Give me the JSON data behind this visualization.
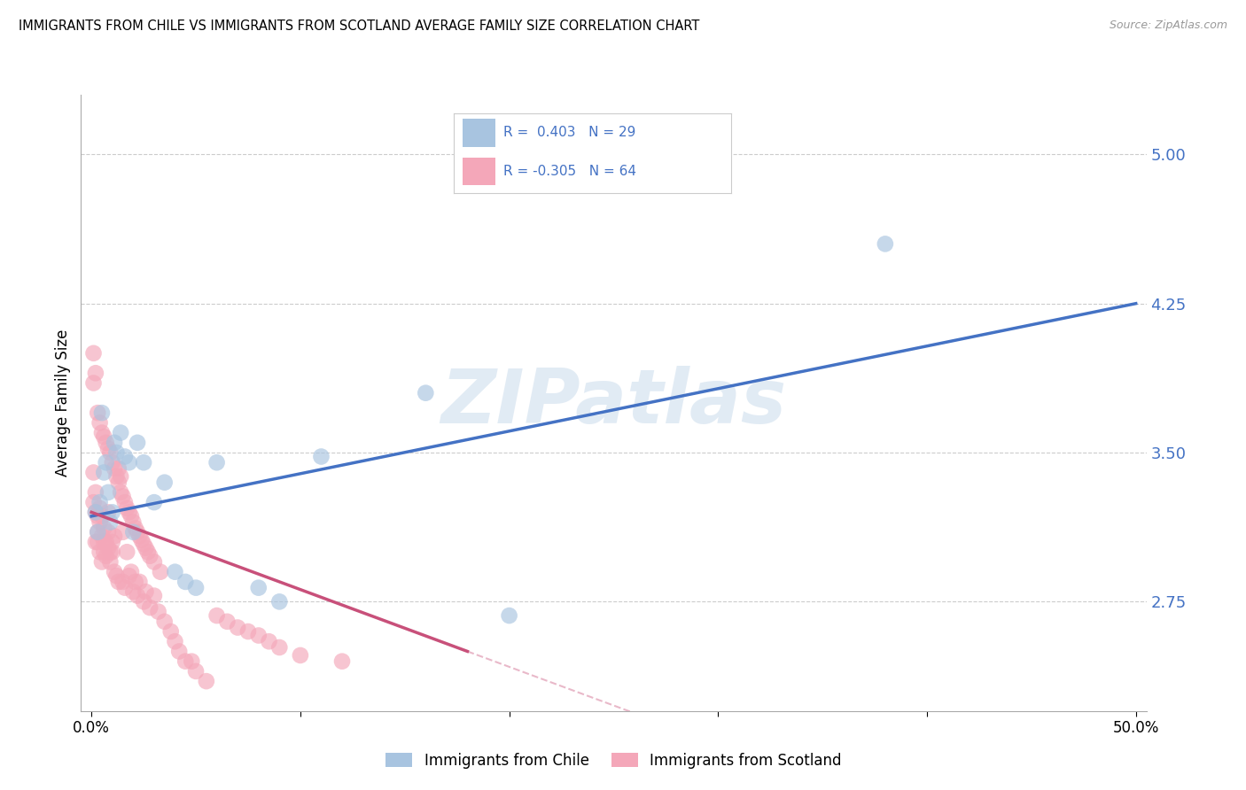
{
  "title": "IMMIGRANTS FROM CHILE VS IMMIGRANTS FROM SCOTLAND AVERAGE FAMILY SIZE CORRELATION CHART",
  "source": "Source: ZipAtlas.com",
  "ylabel": "Average Family Size",
  "xlim": [
    -0.005,
    0.505
  ],
  "ylim": [
    2.2,
    5.3
  ],
  "yticks": [
    2.75,
    3.5,
    4.25,
    5.0
  ],
  "xticks": [
    0.0,
    0.1,
    0.2,
    0.3,
    0.4,
    0.5
  ],
  "xticklabels": [
    "0.0%",
    "",
    "",
    "",
    "",
    "50.0%"
  ],
  "legend_r_chile": "0.403",
  "legend_n_chile": "29",
  "legend_r_scotland": "-0.305",
  "legend_n_scotland": "64",
  "chile_color": "#a8c4e0",
  "scotland_color": "#f4a7b9",
  "chile_line_color": "#4472c4",
  "scotland_line_color": "#c8507a",
  "ytick_color": "#4472c4",
  "watermark_color": "#c5d8ea",
  "chile_x": [
    0.002,
    0.003,
    0.005,
    0.007,
    0.008,
    0.009,
    0.01,
    0.012,
    0.014,
    0.016,
    0.018,
    0.022,
    0.025,
    0.03,
    0.035,
    0.04,
    0.05,
    0.06,
    0.08,
    0.11,
    0.16,
    0.2,
    0.38,
    0.004,
    0.006,
    0.011,
    0.02,
    0.045,
    0.09
  ],
  "chile_y": [
    3.2,
    3.1,
    3.7,
    3.45,
    3.3,
    3.15,
    3.2,
    3.5,
    3.6,
    3.48,
    3.45,
    3.55,
    3.45,
    3.25,
    3.35,
    2.9,
    2.82,
    3.45,
    2.82,
    3.48,
    3.8,
    2.68,
    4.55,
    3.25,
    3.4,
    3.55,
    3.1,
    2.85,
    2.75
  ],
  "scotland_x": [
    0.001,
    0.001,
    0.002,
    0.002,
    0.002,
    0.003,
    0.003,
    0.003,
    0.004,
    0.004,
    0.004,
    0.005,
    0.005,
    0.005,
    0.006,
    0.006,
    0.006,
    0.007,
    0.007,
    0.008,
    0.008,
    0.008,
    0.009,
    0.009,
    0.01,
    0.01,
    0.011,
    0.011,
    0.012,
    0.013,
    0.013,
    0.014,
    0.015,
    0.015,
    0.016,
    0.017,
    0.018,
    0.019,
    0.02,
    0.021,
    0.022,
    0.023,
    0.025,
    0.026,
    0.028,
    0.03,
    0.032,
    0.035,
    0.038,
    0.04,
    0.042,
    0.045,
    0.048,
    0.05,
    0.055,
    0.06,
    0.065,
    0.07,
    0.075,
    0.08,
    0.085,
    0.09,
    0.1,
    0.12
  ],
  "scotland_y": [
    3.25,
    3.4,
    3.3,
    3.2,
    3.05,
    3.1,
    3.05,
    3.18,
    3.15,
    3.22,
    3.0,
    3.18,
    3.08,
    2.95,
    3.12,
    3.0,
    3.05,
    2.98,
    3.05,
    3.1,
    3.02,
    3.2,
    2.95,
    3.0,
    3.0,
    3.05,
    2.9,
    3.08,
    2.88,
    3.42,
    2.85,
    3.38,
    2.85,
    3.1,
    2.82,
    3.0,
    2.88,
    2.9,
    2.8,
    2.85,
    2.78,
    2.85,
    2.75,
    2.8,
    2.72,
    2.78,
    2.7,
    2.65,
    2.6,
    2.55,
    2.5,
    2.45,
    2.45,
    2.4,
    2.35,
    2.68,
    2.65,
    2.62,
    2.6,
    2.58,
    2.55,
    2.52,
    2.48,
    2.45
  ],
  "scotland_high_x": [
    0.001,
    0.001,
    0.002,
    0.003,
    0.004,
    0.005,
    0.006,
    0.007,
    0.008,
    0.009,
    0.01,
    0.011,
    0.012,
    0.013,
    0.014,
    0.015,
    0.016,
    0.017,
    0.018,
    0.019,
    0.02,
    0.021,
    0.022,
    0.023,
    0.024,
    0.025,
    0.026,
    0.027,
    0.028,
    0.03,
    0.033
  ],
  "scotland_high_y": [
    4.0,
    3.85,
    3.9,
    3.7,
    3.65,
    3.6,
    3.58,
    3.55,
    3.52,
    3.5,
    3.45,
    3.42,
    3.38,
    3.35,
    3.3,
    3.28,
    3.25,
    3.22,
    3.2,
    3.18,
    3.15,
    3.12,
    3.1,
    3.08,
    3.06,
    3.04,
    3.02,
    3.0,
    2.98,
    2.95,
    2.9
  ]
}
